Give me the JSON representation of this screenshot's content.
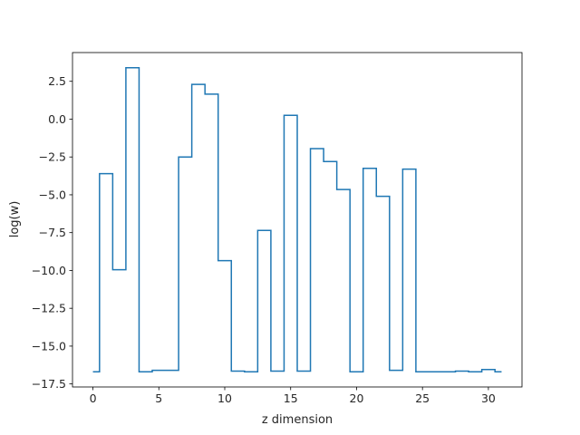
{
  "chart_data": {
    "type": "line",
    "title": "",
    "xlabel": "z dimension",
    "ylabel": "log(w)",
    "xlim": [
      -1.55,
      32.55
    ],
    "ylim": [
      -17.7,
      4.4
    ],
    "xticks": [
      0,
      5,
      10,
      15,
      20,
      25,
      30
    ],
    "xtick_labels": [
      "0",
      "5",
      "10",
      "15",
      "20",
      "25",
      "30"
    ],
    "yticks": [
      -17.5,
      -15.0,
      -12.5,
      -10.0,
      -7.5,
      -5.0,
      -2.5,
      0.0,
      2.5
    ],
    "ytick_labels": [
      "−17.5",
      "−15.0",
      "−12.5",
      "−10.0",
      "−7.5",
      "−5.0",
      "−2.5",
      "0.0",
      "2.5"
    ],
    "grid": false,
    "series": [
      {
        "drawstyle": "steps-mid",
        "color": "#1f77b4",
        "x": [
          0,
          1,
          2,
          3,
          4,
          5,
          6,
          7,
          8,
          9,
          10,
          11,
          12,
          13,
          14,
          15,
          16,
          17,
          18,
          19,
          20,
          21,
          22,
          23,
          24,
          25,
          26,
          27,
          28,
          29,
          30,
          31
        ],
        "values": [
          -16.7,
          -3.6,
          -9.95,
          3.4,
          -16.7,
          -16.6,
          -16.6,
          -2.5,
          2.3,
          1.65,
          -9.35,
          -16.65,
          -16.7,
          -7.35,
          -16.65,
          0.25,
          -16.65,
          -1.95,
          -2.8,
          -4.65,
          -16.7,
          -3.25,
          -5.1,
          -16.6,
          -3.3,
          -16.7,
          -16.7,
          -16.7,
          -16.65,
          -16.7,
          -16.55,
          -16.7
        ]
      }
    ]
  }
}
